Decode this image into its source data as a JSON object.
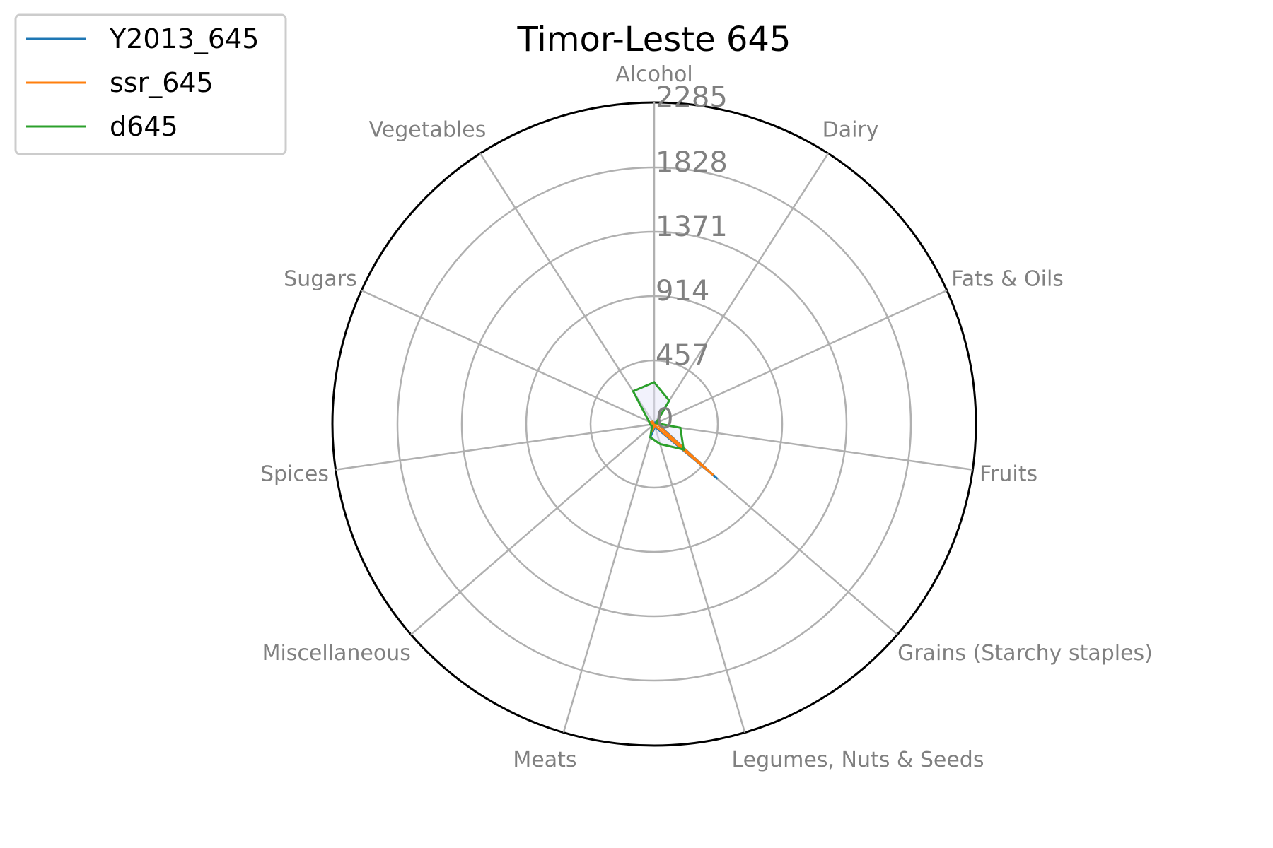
{
  "chart_data": {
    "type": "radar",
    "title": "Timor-Leste 645",
    "categories": [
      "Alcohol",
      "Dairy",
      "Fats & Oils",
      "Fruits",
      "Grains (Starchy staples)",
      "Legumes, Nuts & Seeds",
      "Meats",
      "Miscellaneous",
      "Spices",
      "Sugars",
      "Vegetables"
    ],
    "rlim": [
      0,
      2285
    ],
    "rticks": [
      "0",
      "457",
      "914",
      "1371",
      "1828",
      "2285"
    ],
    "rtick_values": [
      0,
      457,
      914,
      1371,
      1828,
      2285
    ],
    "grid": true,
    "legend_position": "upper-left",
    "series": [
      {
        "name": "Y2013_645",
        "color": "#1f77b4",
        "values": [
          0,
          20,
          5,
          30,
          600,
          20,
          100,
          10,
          5,
          20,
          20
        ]
      },
      {
        "name": "ssr_645",
        "color": "#ff7f0e",
        "values": [
          0,
          10,
          5,
          25,
          560,
          10,
          60,
          5,
          5,
          30,
          20
        ]
      },
      {
        "name": "d645",
        "color": "#2ca02c",
        "values": [
          300,
          200,
          15,
          190,
          280,
          150,
          100,
          20,
          30,
          40,
          280
        ]
      }
    ],
    "fill_color": "#e6e6fa"
  }
}
